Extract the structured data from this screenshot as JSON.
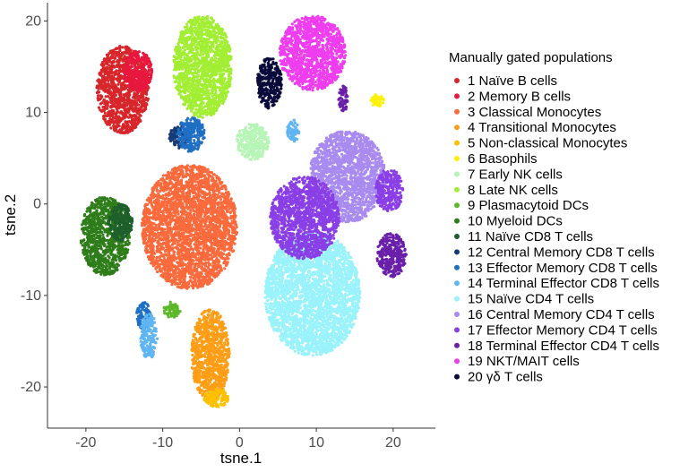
{
  "chart_data": {
    "type": "scatter",
    "title": "",
    "xlabel": "tsne.1",
    "ylabel": "tsne.2",
    "xlim": [
      -25,
      25.5
    ],
    "ylim": [
      -24.5,
      22
    ],
    "xticks": [
      -20,
      -10,
      0,
      10,
      20
    ],
    "yticks": [
      -20,
      -10,
      0,
      10,
      20
    ],
    "grid": false,
    "legend_title": "Manually gated populations",
    "legend_position": "right",
    "series": [
      {
        "name": "1 Naïve B cells",
        "color": "#D7262B",
        "clusters": [
          {
            "cx": -15.2,
            "cy": 12.5,
            "rx": 3.4,
            "ry": 4.8
          }
        ]
      },
      {
        "name": "2 Memory B cells",
        "color": "#E8173F",
        "clusters": [
          {
            "cx": -13.2,
            "cy": 14.5,
            "rx": 1.8,
            "ry": 2.2
          }
        ]
      },
      {
        "name": "3 Classical Monocytes",
        "color": "#FA6A3C",
        "clusters": [
          {
            "cx": -6.5,
            "cy": -2.5,
            "rx": 6.2,
            "ry": 6.8
          }
        ]
      },
      {
        "name": "4 Transitional Monocytes",
        "color": "#FF9E16",
        "clusters": [
          {
            "cx": -3.8,
            "cy": -16.5,
            "rx": 2.5,
            "ry": 5.0
          }
        ]
      },
      {
        "name": "5 Non-classical Monocytes",
        "color": "#FFC000",
        "clusters": [
          {
            "cx": -3.0,
            "cy": -21.2,
            "rx": 1.6,
            "ry": 1.0
          }
        ]
      },
      {
        "name": "6 Basophils",
        "color": "#FFF200",
        "clusters": [
          {
            "cx": 18.0,
            "cy": 11.3,
            "rx": 0.9,
            "ry": 0.7
          }
        ]
      },
      {
        "name": "7 Early NK cells",
        "color": "#B6F5B6",
        "clusters": [
          {
            "cx": 1.7,
            "cy": 6.8,
            "rx": 2.1,
            "ry": 2.0
          }
        ]
      },
      {
        "name": "8 Late NK cells",
        "color": "#A2EE33",
        "clusters": [
          {
            "cx": -4.8,
            "cy": 15.0,
            "rx": 3.8,
            "ry": 5.6
          }
        ]
      },
      {
        "name": "9 Plasmacytoid DCs",
        "color": "#5DB829",
        "clusters": [
          {
            "cx": -8.8,
            "cy": -11.6,
            "rx": 1.1,
            "ry": 0.9
          }
        ]
      },
      {
        "name": "10 Myeloid DCs",
        "color": "#2E7D1A",
        "clusters": [
          {
            "cx": -17.5,
            "cy": -3.5,
            "rx": 3.2,
            "ry": 4.3
          }
        ]
      },
      {
        "name": "11 Naïve CD8 T cells",
        "color": "#1E5F2C",
        "clusters": [
          {
            "cx": -15.5,
            "cy": -2.0,
            "rx": 1.6,
            "ry": 2.0
          }
        ]
      },
      {
        "name": "12 Central Memory CD8 T cells",
        "color": "#173A78",
        "clusters": [
          {
            "cx": -7.8,
            "cy": 7.3,
            "rx": 1.4,
            "ry": 1.2
          }
        ]
      },
      {
        "name": "13 Effector Memory CD8 T cells",
        "color": "#1F6FC4",
        "clusters": [
          {
            "cx": -6.3,
            "cy": 7.6,
            "rx": 1.8,
            "ry": 1.9
          },
          {
            "cx": -12.5,
            "cy": -12.2,
            "rx": 0.9,
            "ry": 1.5
          }
        ]
      },
      {
        "name": "14 Terminal Effector CD8 T cells",
        "color": "#5FB5F2",
        "clusters": [
          {
            "cx": -11.8,
            "cy": -14.5,
            "rx": 1.1,
            "ry": 2.5
          },
          {
            "cx": 7.0,
            "cy": 8.0,
            "rx": 0.8,
            "ry": 1.2
          }
        ]
      },
      {
        "name": "15 Naïve CD4 T cells",
        "color": "#9AF2FB",
        "clusters": [
          {
            "cx": 9.5,
            "cy": -9.8,
            "rx": 6.2,
            "ry": 6.8
          }
        ]
      },
      {
        "name": "16 Central Memory CD4 T cells",
        "color": "#A98BF0",
        "clusters": [
          {
            "cx": 14.0,
            "cy": 3.0,
            "rx": 5.0,
            "ry": 5.0
          }
        ]
      },
      {
        "name": "17 Effector Memory CD4 T cells",
        "color": "#8A3FE6",
        "clusters": [
          {
            "cx": 8.5,
            "cy": -1.5,
            "rx": 4.5,
            "ry": 4.5
          },
          {
            "cx": 19.5,
            "cy": 1.5,
            "rx": 1.8,
            "ry": 2.3
          }
        ]
      },
      {
        "name": "18 Terminal Effector CD4 T cells",
        "color": "#6A1FAA",
        "clusters": [
          {
            "cx": 19.8,
            "cy": -5.6,
            "rx": 1.9,
            "ry": 2.4
          },
          {
            "cx": 13.5,
            "cy": 11.5,
            "rx": 0.6,
            "ry": 1.5
          }
        ]
      },
      {
        "name": "19 NKT/MAIT cells",
        "color": "#EE3DEE",
        "clusters": [
          {
            "cx": 9.5,
            "cy": 16.5,
            "rx": 4.3,
            "ry": 4.1
          }
        ]
      },
      {
        "name": "20 γδ T cells",
        "color": "#0B0B3B",
        "clusters": [
          {
            "cx": 3.9,
            "cy": 13.2,
            "rx": 1.6,
            "ry": 2.8
          }
        ]
      }
    ]
  }
}
